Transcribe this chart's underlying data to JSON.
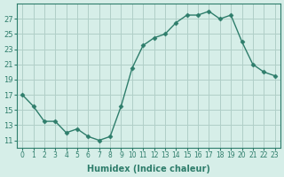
{
  "x": [
    0,
    1,
    2,
    3,
    4,
    5,
    6,
    7,
    8,
    9,
    10,
    11,
    12,
    13,
    14,
    15,
    16,
    17,
    18,
    19,
    20,
    21,
    22,
    23
  ],
  "y": [
    17,
    15.5,
    13.5,
    13.5,
    12,
    12.5,
    11.5,
    11,
    11.5,
    15.5,
    20.5,
    23.5,
    24.5,
    25,
    26.5,
    27.5,
    27.5,
    28,
    27,
    27.5,
    24,
    21,
    20,
    19.5
  ],
  "line_color": "#2e7d6b",
  "marker_color": "#2e7d6b",
  "bg_color": "#d6eee8",
  "grid_color": "#b0cfc8",
  "xlabel": "Humidex (Indice chaleur)",
  "ylabel": "",
  "title": "",
  "ylim": [
    10,
    29
  ],
  "xlim": [
    -0.5,
    23.5
  ],
  "yticks": [
    11,
    13,
    15,
    17,
    19,
    21,
    23,
    25,
    27
  ],
  "xticks": [
    0,
    1,
    2,
    3,
    4,
    5,
    6,
    7,
    8,
    9,
    10,
    11,
    12,
    13,
    14,
    15,
    16,
    17,
    18,
    19,
    20,
    21,
    22,
    23
  ],
  "xtick_labels": [
    "0",
    "1",
    "2",
    "3",
    "4",
    "5",
    "6",
    "7",
    "8",
    "9",
    "10",
    "11",
    "12",
    "13",
    "14",
    "15",
    "16",
    "17",
    "18",
    "19",
    "20",
    "21",
    "22",
    "23"
  ]
}
